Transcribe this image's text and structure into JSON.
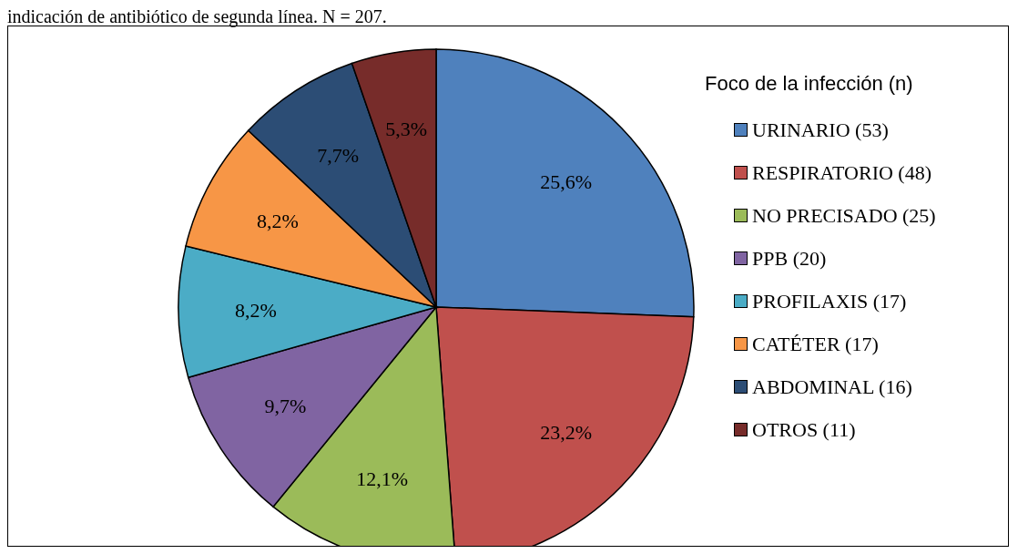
{
  "chart_data": {
    "type": "pie",
    "title": "indicación de antibiótico de segunda línea. N = 207.",
    "legend_title": "Foco de la infección (n)",
    "categories": [
      "URINARIO (53)",
      "RESPIRATORIO (48)",
      "NO PRECISADO (25)",
      "PPB (20)",
      "PROFILAXIS (17)",
      "CATÉTER (17)",
      "ABDOMINAL (16)",
      "OTROS (11)"
    ],
    "values": [
      25.6,
      23.2,
      12.1,
      9.7,
      8.2,
      8.2,
      7.7,
      5.3
    ],
    "value_labels": [
      "25,6%",
      "23,2%",
      "12,1%",
      "9,7%",
      "8,2%",
      "8,2%",
      "7,7%",
      "5,3%"
    ],
    "colors": [
      "#4f81bd",
      "#c0504d",
      "#9bbb59",
      "#8064a2",
      "#4bacc6",
      "#f79646",
      "#2c4d75",
      "#772c2a"
    ],
    "legend": "right"
  }
}
